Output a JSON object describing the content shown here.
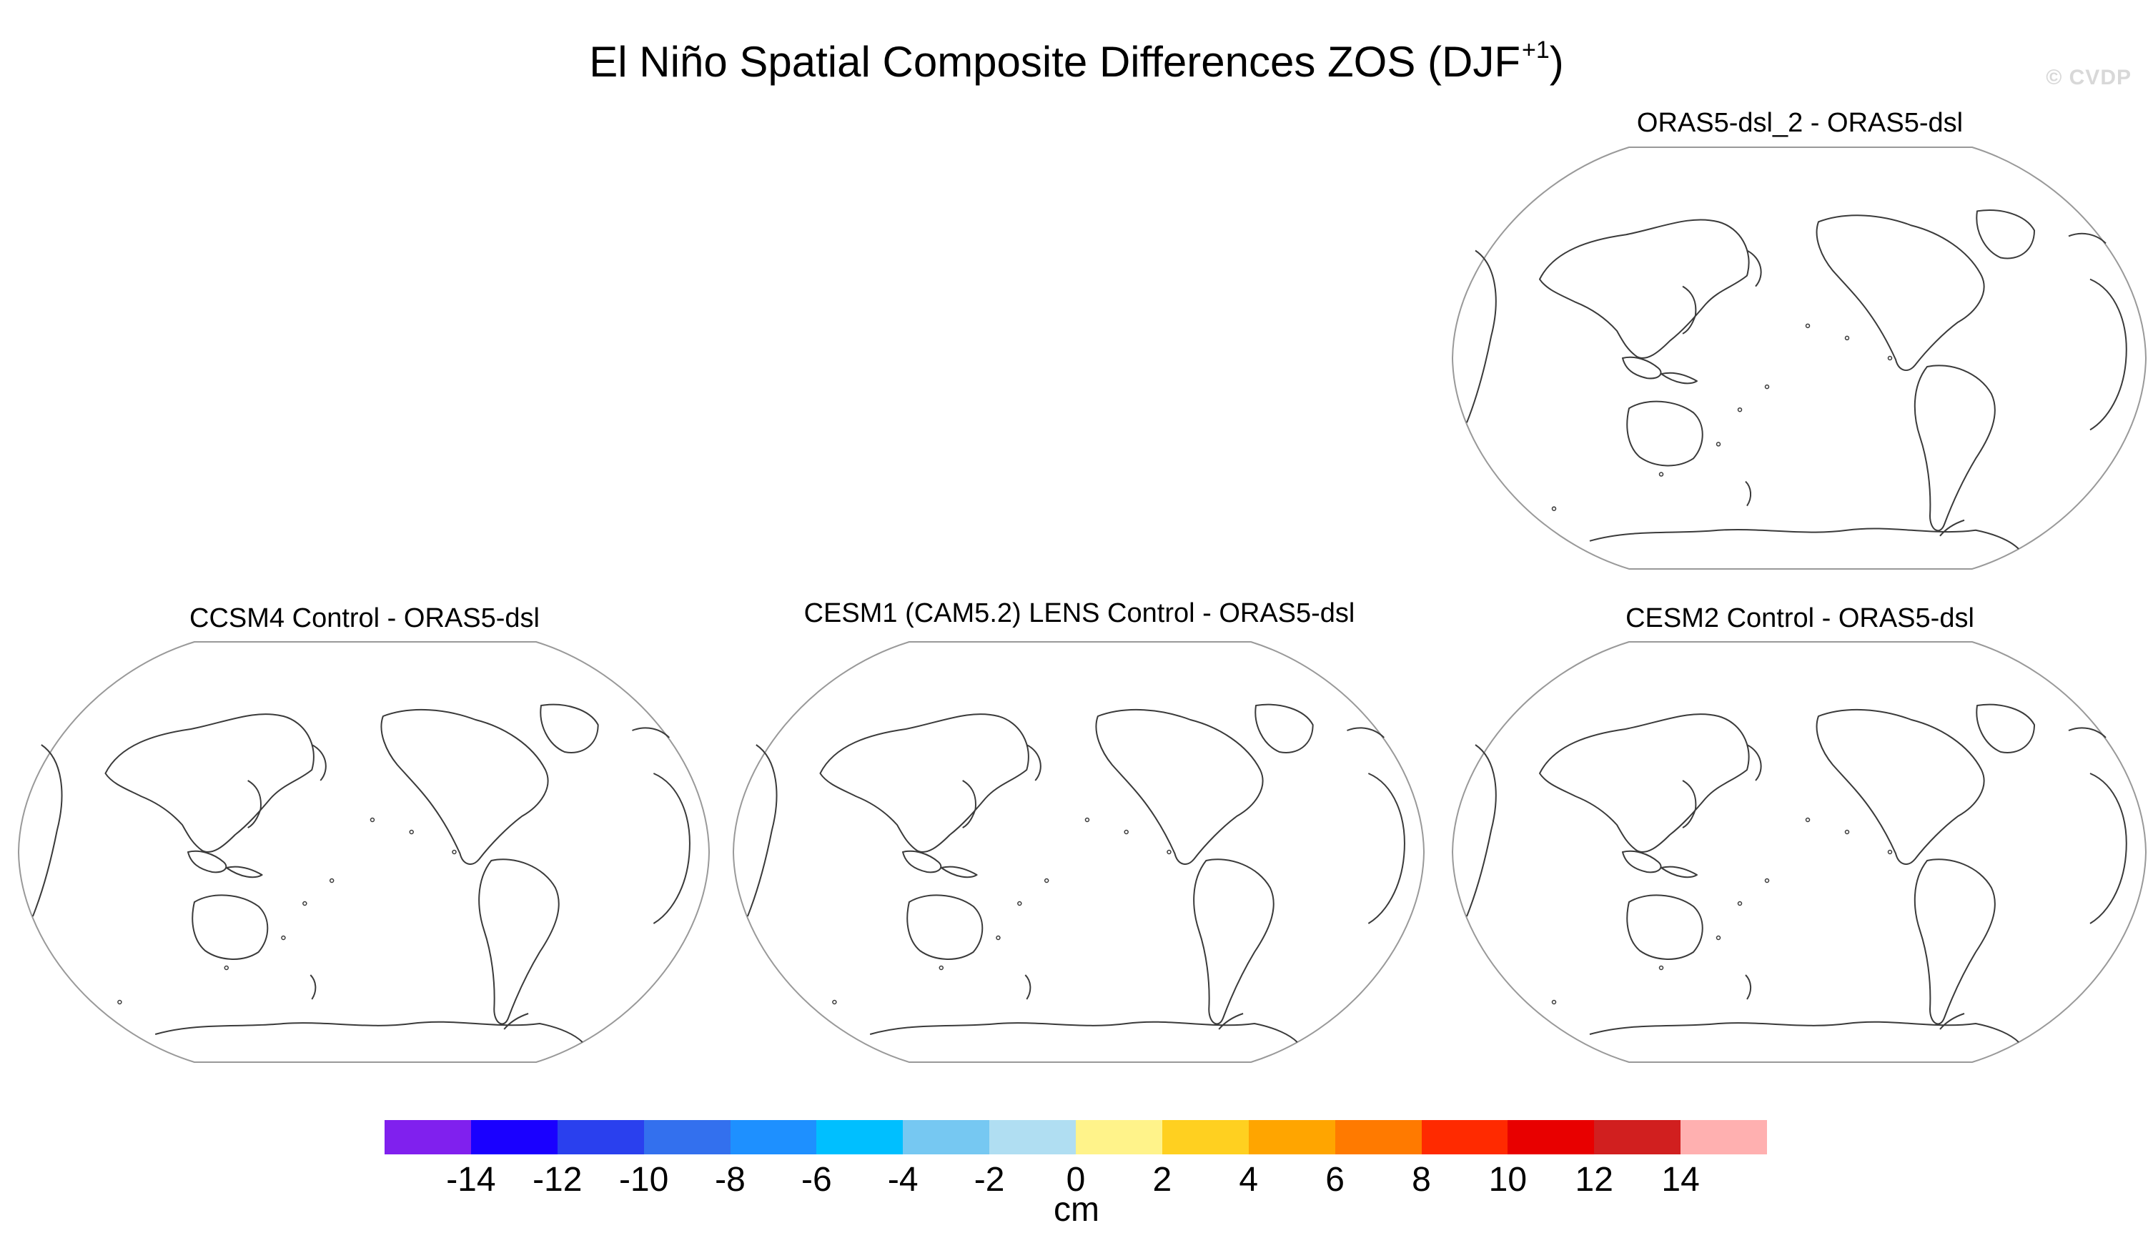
{
  "figure": {
    "title": "El Niño Spatial Composite Differences ZOS (DJF",
    "title_superscript": "+1",
    "title_close": ")",
    "watermark": "© CVDP"
  },
  "panels": [
    {
      "id": "orasdsl2",
      "title": "ORAS5-dsl_2 - ORAS5-dsl"
    },
    {
      "id": "ccsm4",
      "title": "CCSM4 Control - ORAS5-dsl"
    },
    {
      "id": "cesm1",
      "title": "CESM1 (CAM5.2) LENS Control - ORAS5-dsl"
    },
    {
      "id": "cesm2",
      "title": "CESM2 Control - ORAS5-dsl"
    }
  ],
  "colorbar": {
    "units": "cm",
    "colors": [
      "#8020ee",
      "#1a00ff",
      "#2a40ee",
      "#3370ee",
      "#1e90ff",
      "#00bfff",
      "#76c8f2",
      "#b0def2",
      "#fff38a",
      "#ffd020",
      "#ffa500",
      "#ff7a00",
      "#ff2a00",
      "#e80000",
      "#d11f1f",
      "#ffb0b0"
    ],
    "tick_labels": [
      "-14",
      "-12",
      "-10",
      "-8",
      "-6",
      "-4",
      "-2",
      "0",
      "2",
      "4",
      "6",
      "8",
      "10",
      "12",
      "14"
    ]
  }
}
